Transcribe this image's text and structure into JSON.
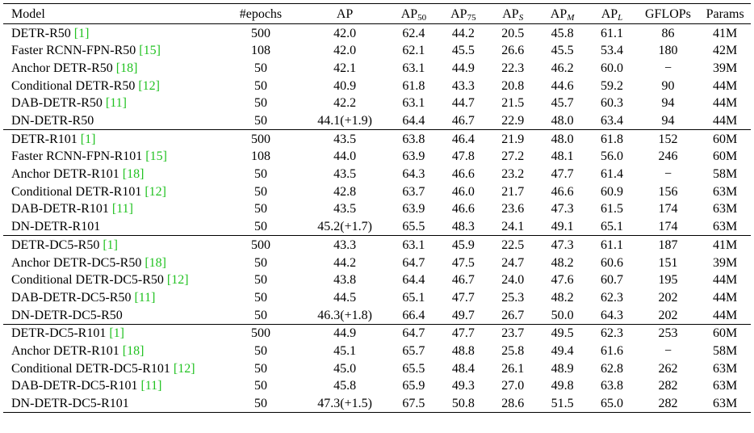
{
  "header": {
    "model": "Model",
    "epochs": "#epochs",
    "ap": "AP",
    "ap50": {
      "base": "AP",
      "sub": "50"
    },
    "ap75": {
      "base": "AP",
      "sub": "75"
    },
    "aps": {
      "base": "AP",
      "sub": "S"
    },
    "apm": {
      "base": "AP",
      "sub": "M"
    },
    "apl": {
      "base": "AP",
      "sub": "L"
    },
    "gflops": "GFLOPs",
    "params": "Params"
  },
  "colors": {
    "citation": "#22c222"
  },
  "groups": [
    {
      "rows": [
        {
          "model": "DETR-R50 ",
          "cite": "[1]",
          "epochs": "500",
          "ap": "42.0",
          "ap_bold": false,
          "ap50": "62.4",
          "ap75": "44.2",
          "aps": "20.5",
          "apm": "45.8",
          "apl": "61.1",
          "gflops": "86",
          "params": "41M"
        },
        {
          "model": "Faster RCNN-FPN-R50 ",
          "cite": "[15]",
          "epochs": "108",
          "ap": "42.0",
          "ap_bold": false,
          "ap50": "62.1",
          "ap75": "45.5",
          "aps": "26.6",
          "apm": "45.5",
          "apl": "53.4",
          "gflops": "180",
          "params": "42M"
        },
        {
          "model": "Anchor DETR-R50 ",
          "cite": "[18]",
          "epochs": "50",
          "ap": "42.1",
          "ap_bold": false,
          "ap50": "63.1",
          "ap75": "44.9",
          "aps": "22.3",
          "apm": "46.2",
          "apl": "60.0",
          "gflops": "−",
          "params": "39M"
        },
        {
          "model": "Conditional DETR-R50 ",
          "cite": "[12]",
          "epochs": "50",
          "ap": "40.9",
          "ap_bold": false,
          "ap50": "61.8",
          "ap75": "43.3",
          "aps": "20.8",
          "apm": "44.6",
          "apl": "59.2",
          "gflops": "90",
          "params": "44M"
        },
        {
          "model": "DAB-DETR-R50 ",
          "cite": "[11]",
          "epochs": "50",
          "ap": "42.2",
          "ap_bold": false,
          "ap50": "63.1",
          "ap75": "44.7",
          "aps": "21.5",
          "apm": "45.7",
          "apl": "60.3",
          "gflops": "94",
          "params": "44M"
        },
        {
          "model": "DN-DETR-R50",
          "cite": "",
          "epochs": "50",
          "ap": "44.1(+1.9)",
          "ap_bold": true,
          "ap50": "64.4",
          "ap75": "46.7",
          "aps": "22.9",
          "apm": "48.0",
          "apl": "63.4",
          "gflops": "94",
          "params": "44M"
        }
      ]
    },
    {
      "rows": [
        {
          "model": "DETR-R101 ",
          "cite": "[1]",
          "epochs": "500",
          "ap": "43.5",
          "ap_bold": false,
          "ap50": "63.8",
          "ap75": "46.4",
          "aps": "21.9",
          "apm": "48.0",
          "apl": "61.8",
          "gflops": "152",
          "params": "60M"
        },
        {
          "model": "Faster RCNN-FPN-R101 ",
          "cite": "[15]",
          "epochs": "108",
          "ap": "44.0",
          "ap_bold": false,
          "ap50": "63.9",
          "ap75": "47.8",
          "aps": "27.2",
          "apm": "48.1",
          "apl": "56.0",
          "gflops": "246",
          "params": "60M"
        },
        {
          "model": "Anchor DETR-R101 ",
          "cite": "[18]",
          "epochs": "50",
          "ap": "43.5",
          "ap_bold": false,
          "ap50": "64.3",
          "ap75": "46.6",
          "aps": "23.2",
          "apm": "47.7",
          "apl": "61.4",
          "gflops": "−",
          "params": "58M"
        },
        {
          "model": "Conditional DETR-R101 ",
          "cite": "[12]",
          "epochs": "50",
          "ap": "42.8",
          "ap_bold": false,
          "ap50": "63.7",
          "ap75": "46.0",
          "aps": "21.7",
          "apm": "46.6",
          "apl": "60.9",
          "gflops": "156",
          "params": "63M"
        },
        {
          "model": "DAB-DETR-R101 ",
          "cite": "[11]",
          "epochs": "50",
          "ap": "43.5",
          "ap_bold": false,
          "ap50": "63.9",
          "ap75": "46.6",
          "aps": "23.6",
          "apm": "47.3",
          "apl": "61.5",
          "gflops": "174",
          "params": "63M"
        },
        {
          "model": "DN-DETR-R101",
          "cite": "",
          "epochs": "50",
          "ap": "45.2(+1.7)",
          "ap_bold": true,
          "ap50": "65.5",
          "ap75": "48.3",
          "aps": "24.1",
          "apm": "49.1",
          "apl": "65.1",
          "gflops": "174",
          "params": "63M"
        }
      ]
    },
    {
      "rows": [
        {
          "model": "DETR-DC5-R50 ",
          "cite": "[1]",
          "epochs": "500",
          "ap": "43.3",
          "ap_bold": false,
          "ap50": "63.1",
          "ap75": "45.9",
          "aps": "22.5",
          "apm": "47.3",
          "apl": "61.1",
          "gflops": "187",
          "params": "41M"
        },
        {
          "model": "Anchor DETR-DC5-R50 ",
          "cite": "[18]",
          "epochs": "50",
          "ap": "44.2",
          "ap_bold": false,
          "ap50": "64.7",
          "ap75": "47.5",
          "aps": "24.7",
          "apm": "48.2",
          "apl": "60.6",
          "gflops": "151",
          "params": "39M"
        },
        {
          "model": "Conditional DETR-DC5-R50 ",
          "cite": "[12]",
          "epochs": "50",
          "ap": "43.8",
          "ap_bold": false,
          "ap50": "64.4",
          "ap75": "46.7",
          "aps": "24.0",
          "apm": "47.6",
          "apl": "60.7",
          "gflops": "195",
          "params": "44M"
        },
        {
          "model": "DAB-DETR-DC5-R50 ",
          "cite": "[11]",
          "epochs": "50",
          "ap": "44.5",
          "ap_bold": false,
          "ap50": "65.1",
          "ap75": "47.7",
          "aps": "25.3",
          "apm": "48.2",
          "apl": "62.3",
          "gflops": "202",
          "params": "44M"
        },
        {
          "model": "DN-DETR-DC5-R50",
          "cite": "",
          "epochs": "50",
          "ap": "46.3(+1.8)",
          "ap_bold": true,
          "ap50": "66.4",
          "ap75": "49.7",
          "aps": "26.7",
          "apm": "50.0",
          "apl": "64.3",
          "gflops": "202",
          "params": "44M"
        }
      ]
    },
    {
      "rows": [
        {
          "model": "DETR-DC5-R101 ",
          "cite": "[1]",
          "epochs": "500",
          "ap": "44.9",
          "ap_bold": false,
          "ap50": "64.7",
          "ap75": "47.7",
          "aps": "23.7",
          "apm": "49.5",
          "apl": "62.3",
          "gflops": "253",
          "params": "60M"
        },
        {
          "model": "Anchor DETR-R101 ",
          "cite": "[18]",
          "epochs": "50",
          "ap": "45.1",
          "ap_bold": false,
          "ap50": "65.7",
          "ap75": "48.8",
          "aps": "25.8",
          "apm": "49.4",
          "apl": "61.6",
          "gflops": "−",
          "params": "58M"
        },
        {
          "model": "Conditional DETR-DC5-R101 ",
          "cite": "[12]",
          "epochs": "50",
          "ap": "45.0",
          "ap_bold": false,
          "ap50": "65.5",
          "ap75": "48.4",
          "aps": "26.1",
          "apm": "48.9",
          "apl": "62.8",
          "gflops": "262",
          "params": "63M"
        },
        {
          "model": "DAB-DETR-DC5-R101 ",
          "cite": "[11]",
          "epochs": "50",
          "ap": "45.8",
          "ap_bold": false,
          "ap50": "65.9",
          "ap75": "49.3",
          "aps": "27.0",
          "apm": "49.8",
          "apl": "63.8",
          "gflops": "282",
          "params": "63M"
        },
        {
          "model": "DN-DETR-DC5-R101",
          "cite": "",
          "epochs": "50",
          "ap": "47.3(+1.5)",
          "ap_bold": true,
          "ap50": "67.5",
          "ap75": "50.8",
          "aps": "28.6",
          "apm": "51.5",
          "apl": "65.0",
          "gflops": "282",
          "params": "63M"
        }
      ]
    }
  ]
}
